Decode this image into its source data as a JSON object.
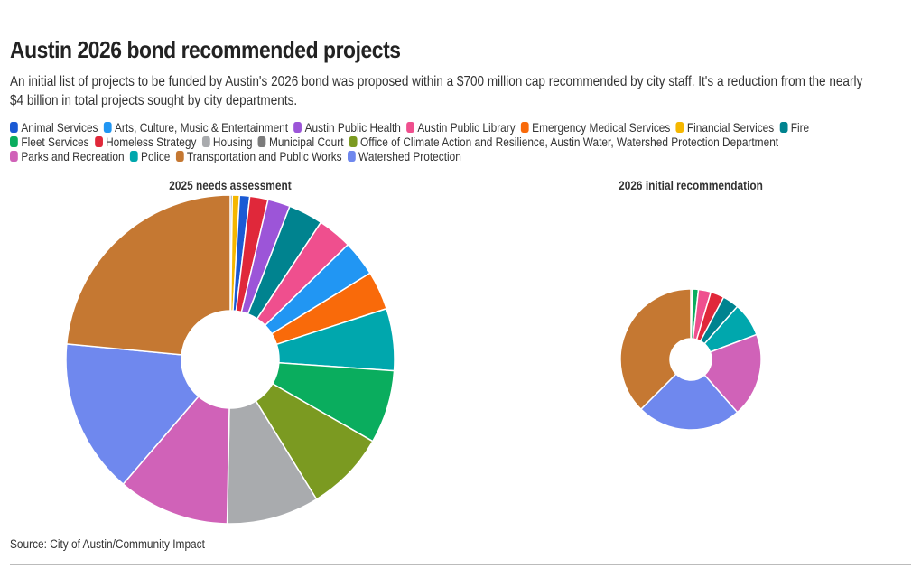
{
  "title": "Austin 2026 bond recommended projects",
  "subtitle": "An initial list of projects to be funded by Austin's 2026 bond was proposed within a $700 million cap recommended by city staff. It's a reduction from the nearly $4 billion in total projects sought by city departments.",
  "source": "Source: City of Austin/Community Impact",
  "chart_data": {
    "type": "pie",
    "donut": true,
    "legend_position": "top",
    "categories": [
      {
        "name": "Animal Services",
        "color": "#1a5ad4"
      },
      {
        "name": "Arts, Culture, Music & Entertainment",
        "color": "#2196f3"
      },
      {
        "name": "Austin Public Health",
        "color": "#9c55d8"
      },
      {
        "name": "Austin Public Library",
        "color": "#ef4f8e"
      },
      {
        "name": "Emergency Medical Services",
        "color": "#f96a0a"
      },
      {
        "name": "Financial Services",
        "color": "#f5b700"
      },
      {
        "name": "Fire",
        "color": "#00838f"
      },
      {
        "name": "Fleet Services",
        "color": "#0aad5e"
      },
      {
        "name": "Homeless Strategy",
        "color": "#e0283a"
      },
      {
        "name": "Housing",
        "color": "#a9abae"
      },
      {
        "name": "Municipal Court",
        "color": "#7b7b7b"
      },
      {
        "name": "Office of Climate Action and Resilience, Austin Water, Watershed Protection Department",
        "color": "#7b9a21"
      },
      {
        "name": "Parks and Recreation",
        "color": "#d062b8"
      },
      {
        "name": "Police",
        "color": "#00a7ad"
      },
      {
        "name": "Transportation and Public Works",
        "color": "#c57832"
      },
      {
        "name": "Watershed Protection",
        "color": "#6f88ee"
      }
    ],
    "legend_rows": [
      [
        "Animal Services",
        "Arts, Culture, Music & Entertainment",
        "Austin Public Health",
        "Austin Public Library",
        "Emergency Medical Services",
        "Financial Services",
        "Fire"
      ],
      [
        "Fleet Services",
        "Homeless Strategy",
        "Housing",
        "Municipal Court",
        "Office of Climate Action and Resilience, Austin Water, Watershed Protection Department"
      ],
      [
        "Parks and Recreation",
        "Police",
        "Transportation and Public Works",
        "Watershed Protection"
      ]
    ],
    "charts": [
      {
        "title": "2025 needs assessment",
        "unit": "share of total (%)",
        "slices": [
          {
            "name": "Municipal Court",
            "value": 0.2
          },
          {
            "name": "Financial Services",
            "value": 0.7
          },
          {
            "name": "Animal Services",
            "value": 1.0
          },
          {
            "name": "Homeless Strategy",
            "value": 1.8
          },
          {
            "name": "Austin Public Health",
            "value": 2.2
          },
          {
            "name": "Fire",
            "value": 3.4
          },
          {
            "name": "Austin Public Library",
            "value": 3.4
          },
          {
            "name": "Arts, Culture, Music & Entertainment",
            "value": 3.5
          },
          {
            "name": "Emergency Medical Services",
            "value": 3.8
          },
          {
            "name": "Police",
            "value": 6.1
          },
          {
            "name": "Fleet Services",
            "value": 7.2
          },
          {
            "name": "Office of Climate Action and Resilience, Austin Water, Watershed Protection Department",
            "value": 7.9
          },
          {
            "name": "Housing",
            "value": 9.1
          },
          {
            "name": "Parks and Recreation",
            "value": 11.0
          },
          {
            "name": "Watershed Protection",
            "value": 15.2
          },
          {
            "name": "Transportation and Public Works",
            "value": 23.5
          }
        ]
      },
      {
        "title": "2026 initial recommendation",
        "unit": "share of total (%)",
        "slices": [
          {
            "name": "Municipal Court",
            "value": 0.3
          },
          {
            "name": "Fleet Services",
            "value": 1.1
          },
          {
            "name": "Austin Public Library",
            "value": 2.3
          },
          {
            "name": "Homeless Strategy",
            "value": 2.5
          },
          {
            "name": "Fire",
            "value": 3.0
          },
          {
            "name": "Police",
            "value": 6.2
          },
          {
            "name": "Parks and Recreation",
            "value": 15.4
          },
          {
            "name": "Watershed Protection",
            "value": 19.2
          },
          {
            "name": "Transportation and Public Works",
            "value": 30.0
          }
        ]
      }
    ]
  }
}
